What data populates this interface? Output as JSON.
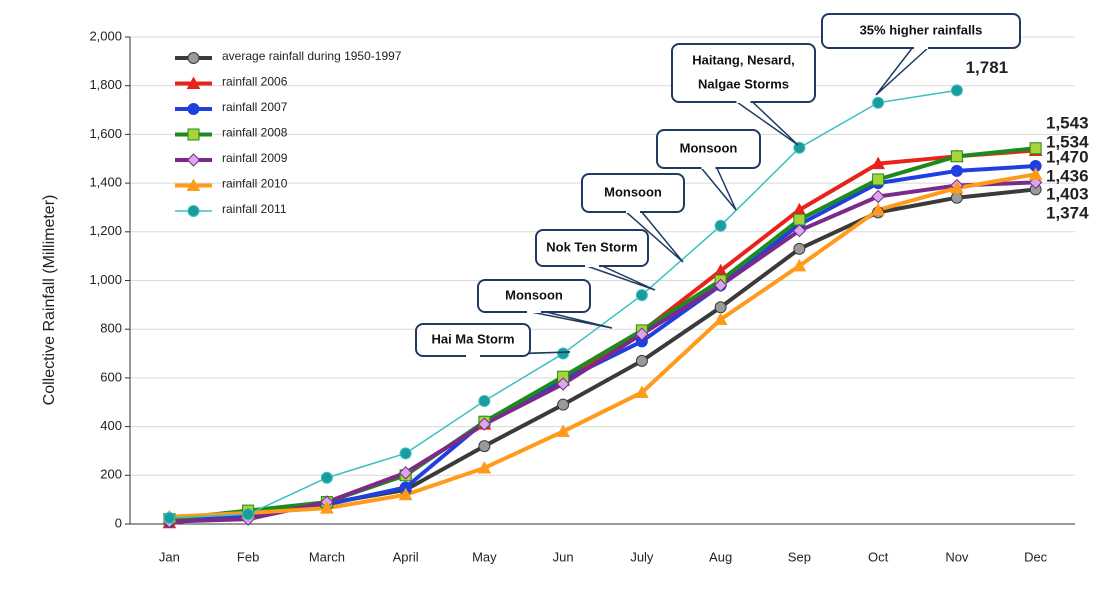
{
  "chart_data": {
    "type": "line",
    "y_label": "Collective Rainfall  (Millimeter)",
    "categories": [
      "Jan",
      "Feb",
      "March",
      "April",
      "May",
      "Jun",
      "July",
      "Aug",
      "Sep",
      "Oct",
      "Nov",
      "Dec"
    ],
    "ylim": [
      0,
      2000
    ],
    "yticks": [
      0,
      200,
      400,
      600,
      800,
      {
        "value": 1000,
        "label": "1,000"
      },
      {
        "value": 1200,
        "label": "1,200"
      },
      {
        "value": 1400,
        "label": "1,400"
      },
      {
        "value": 1600,
        "label": "1,600"
      },
      {
        "value": 1800,
        "label": "1,800"
      },
      {
        "value": 2000,
        "label": "2,000"
      }
    ],
    "grid": true,
    "legend": "upper left",
    "series": [
      {
        "name": "average rainfall  during 1950-1997",
        "color": "#3a3a3a",
        "marker": "circle",
        "marker_color": "#9a9a9a",
        "values": [
          10,
          35,
          85,
          140,
          320,
          490,
          670,
          890,
          1130,
          1280,
          1340,
          1374
        ],
        "value_labels": [
          null,
          null,
          null,
          null,
          null,
          null,
          null,
          null,
          null,
          null,
          null,
          "1,374"
        ]
      },
      {
        "name": "rainfall  2006",
        "color": "#e8231c",
        "marker": "triangle",
        "marker_color": "#e8231c",
        "values": [
          5,
          40,
          90,
          210,
          410,
          590,
          790,
          1040,
          1290,
          1480,
          1510,
          1534
        ],
        "value_labels": [
          null,
          null,
          null,
          null,
          null,
          null,
          null,
          null,
          null,
          null,
          null,
          "1,534"
        ]
      },
      {
        "name": "rainfall  2007",
        "color": "#1f3fe0",
        "marker": "circle",
        "marker_color": "#1f3fe0",
        "values": [
          10,
          30,
          80,
          150,
          420,
          590,
          750,
          980,
          1230,
          1400,
          1450,
          1470
        ],
        "value_labels": [
          null,
          null,
          null,
          null,
          null,
          null,
          null,
          null,
          null,
          null,
          null,
          "1,470"
        ]
      },
      {
        "name": "rainfall  2008",
        "color": "#1e8a1e",
        "marker": "square",
        "marker_color": "#a6d43a",
        "values": [
          20,
          55,
          90,
          200,
          420,
          605,
          795,
          1000,
          1250,
          1415,
          1510,
          1543
        ],
        "value_labels": [
          null,
          null,
          null,
          null,
          null,
          null,
          null,
          null,
          null,
          null,
          null,
          "1,543"
        ]
      },
      {
        "name": "rainfall  2009",
        "color": "#7b2a8a",
        "marker": "diamond",
        "marker_color": "#d8a8e8",
        "values": [
          10,
          20,
          90,
          210,
          410,
          575,
          780,
          980,
          1205,
          1345,
          1390,
          1403
        ],
        "value_labels": [
          null,
          null,
          null,
          null,
          null,
          null,
          null,
          null,
          null,
          null,
          null,
          "1,403"
        ]
      },
      {
        "name": "rainfall  2010",
        "color": "#ff9a1a",
        "marker": "triangle",
        "marker_color": "#ff9a1a",
        "values": [
          30,
          45,
          65,
          120,
          230,
          380,
          540,
          840,
          1060,
          1290,
          1380,
          1436
        ],
        "value_labels": [
          null,
          null,
          null,
          null,
          null,
          null,
          null,
          null,
          null,
          null,
          null,
          "1,436"
        ]
      },
      {
        "name": "rainfall  2011",
        "color": "#3cc0c0",
        "marker": "circle",
        "marker_color": "#1a9c9c",
        "values": [
          25,
          40,
          190,
          290,
          505,
          700,
          940,
          1225,
          1545,
          1730,
          1781,
          null
        ],
        "value_labels": [
          null,
          null,
          null,
          null,
          null,
          null,
          null,
          null,
          null,
          null,
          "1,781",
          null
        ]
      }
    ],
    "annotations": [
      [
        "Hai Ma Storm"
      ],
      [
        "Monsoon"
      ],
      [
        "Nok Ten Storm"
      ],
      [
        "Monsoon"
      ],
      [
        "Monsoon"
      ],
      [
        "Haitang, Nesard,",
        "Nalgae Storms"
      ],
      [
        "35% higher rainfalls"
      ]
    ]
  }
}
